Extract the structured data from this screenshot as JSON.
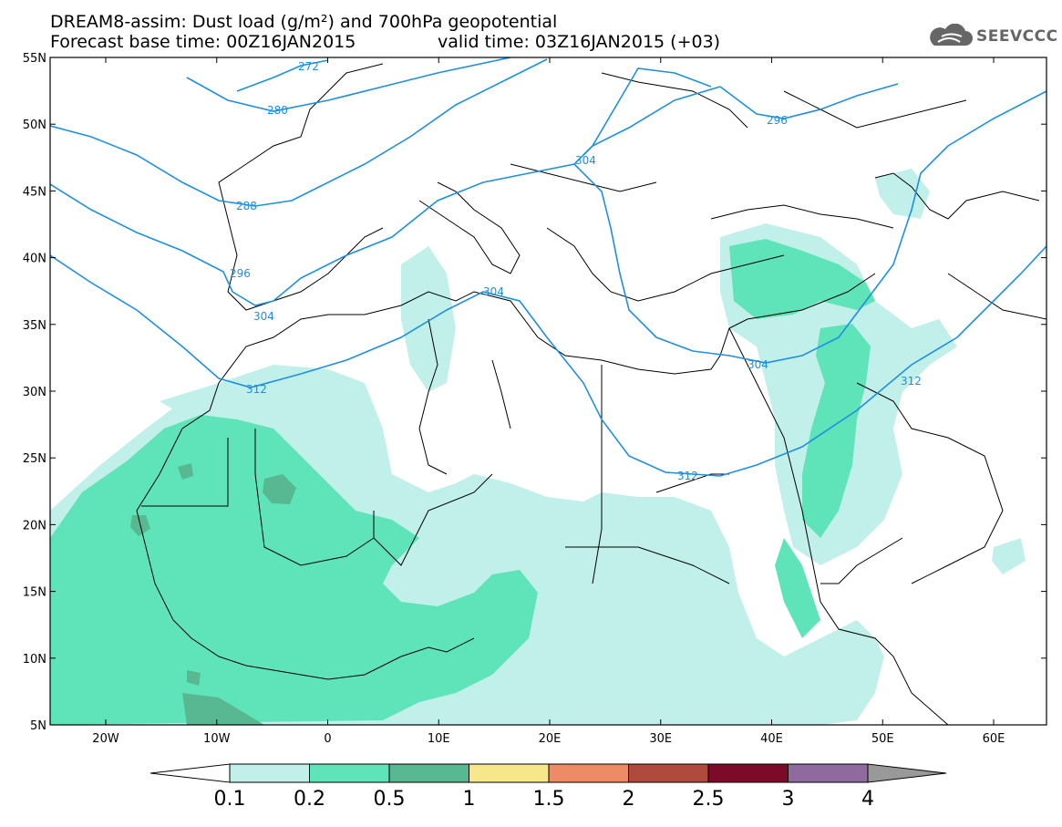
{
  "title": {
    "line1": "DREAM8-assim: Dust load (g/m²) and 700hPa geopotential",
    "line2_left": "Forecast base time: 00Z16JAN2015",
    "line2_right": "valid time: 03Z16JAN2015 (+03)"
  },
  "logo": {
    "text": "SEEVCCC",
    "icon": "cloud-icon"
  },
  "axes": {
    "lat_ticks": [
      "55N",
      "50N",
      "45N",
      "40N",
      "35N",
      "30N",
      "25N",
      "20N",
      "15N",
      "10N",
      "5N"
    ],
    "lon_ticks": [
      "20W",
      "10W",
      "0",
      "10E",
      "20E",
      "30E",
      "40E",
      "50E",
      "60E"
    ]
  },
  "contours": {
    "color": "#1f8fe0",
    "labels": [
      "272",
      "280",
      "288",
      "296",
      "304",
      "312",
      "304",
      "296",
      "304",
      "312",
      "312",
      "304",
      "296",
      "312"
    ]
  },
  "colorbar": {
    "levels": [
      "0.1",
      "0.2",
      "0.5",
      "1",
      "1.5",
      "2",
      "2.5",
      "3",
      "4"
    ],
    "colors": [
      "#c1efe9",
      "#5fe3b8",
      "#58b892",
      "#f6e88a",
      "#ec8b65",
      "#b04a3c",
      "#7d0a28",
      "#8f6a9e",
      "#999999"
    ]
  }
}
